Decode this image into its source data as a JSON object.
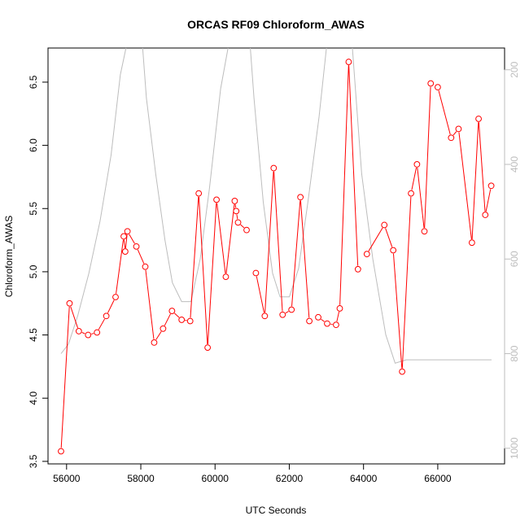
{
  "chart_data": {
    "type": "line",
    "title": "ORCAS RF09 Chloroform_AWAS",
    "xlabel": "UTC Seconds",
    "ylabel": "Chloroform_AWAS",
    "xlim": [
      55500,
      67800
    ],
    "ylim": [
      3.48,
      6.77
    ],
    "x_ticks": [
      56000,
      58000,
      60000,
      62000,
      64000,
      66000
    ],
    "y_ticks": [
      3.5,
      4.0,
      4.5,
      5.0,
      5.5,
      6.0,
      6.5
    ],
    "y2_ticks": [
      200,
      400,
      600,
      800,
      1000
    ],
    "y2_range_at_bottom": 1033,
    "y2_range_at_top": 154,
    "grid": false,
    "series": [
      {
        "color": "#ff0000",
        "marker": "open-circle",
        "axis": "left",
        "segments": [
          [
            [
              55850,
              3.58
            ],
            [
              56080,
              4.75
            ],
            [
              56330,
              4.53
            ],
            [
              56580,
              4.5
            ],
            [
              56820,
              4.52
            ],
            [
              57070,
              4.65
            ],
            [
              57320,
              4.8
            ],
            [
              57540,
              5.28
            ],
            [
              57580,
              5.16
            ],
            [
              57640,
              5.32
            ],
            [
              57880,
              5.2
            ],
            [
              58120,
              5.04
            ],
            [
              58360,
              4.44
            ],
            [
              58600,
              4.55
            ],
            [
              58840,
              4.69
            ],
            [
              59100,
              4.62
            ],
            [
              59330,
              4.61
            ],
            [
              59560,
              5.62
            ],
            [
              59800,
              4.4
            ],
            [
              60040,
              5.57
            ],
            [
              60290,
              4.96
            ],
            [
              60530,
              5.56
            ],
            [
              60570,
              5.48
            ],
            [
              60620,
              5.39
            ],
            [
              60850,
              5.33
            ]
          ],
          [
            [
              61100,
              4.99
            ],
            [
              61340,
              4.65
            ],
            [
              61580,
              5.82
            ],
            [
              61820,
              4.66
            ],
            [
              62060,
              4.7
            ],
            [
              62300,
              5.59
            ],
            [
              62540,
              4.61
            ]
          ],
          [
            [
              62780,
              4.64
            ],
            [
              63020,
              4.59
            ],
            [
              63260,
              4.58
            ],
            [
              63360,
              4.71
            ],
            [
              63600,
              6.66
            ],
            [
              63850,
              5.02
            ]
          ],
          [
            [
              64090,
              5.14
            ],
            [
              64560,
              5.37
            ],
            [
              64800,
              5.17
            ],
            [
              65040,
              4.21
            ],
            [
              65280,
              5.62
            ],
            [
              65440,
              5.85
            ],
            [
              65640,
              5.32
            ],
            [
              65810,
              6.49
            ]
          ],
          [
            [
              66000,
              6.46
            ],
            [
              66360,
              6.06
            ],
            [
              66560,
              6.13
            ],
            [
              66920,
              5.23
            ],
            [
              67100,
              6.21
            ],
            [
              67280,
              5.45
            ],
            [
              67440,
              5.68
            ]
          ]
        ]
      },
      {
        "color": "#bdbdbd",
        "axis": "right",
        "segments": [
          [
            [
              55850,
              800
            ],
            [
              56050,
              780
            ],
            [
              56300,
              720
            ],
            [
              56600,
              630
            ],
            [
              56900,
              520
            ],
            [
              57200,
              380
            ],
            [
              57450,
              210
            ],
            [
              57600,
              154
            ]
          ],
          [
            [
              58050,
              154
            ],
            [
              58150,
              260
            ],
            [
              58400,
              420
            ],
            [
              58650,
              560
            ],
            [
              58850,
              650
            ],
            [
              59100,
              690
            ],
            [
              59350,
              690
            ],
            [
              59600,
              600
            ],
            [
              59850,
              450
            ],
            [
              60150,
              240
            ],
            [
              60350,
              154
            ]
          ],
          [
            [
              60950,
              154
            ],
            [
              61050,
              260
            ],
            [
              61300,
              480
            ],
            [
              61550,
              630
            ],
            [
              61750,
              680
            ],
            [
              62000,
              680
            ],
            [
              62250,
              620
            ],
            [
              62500,
              480
            ],
            [
              62800,
              300
            ],
            [
              63000,
              154
            ]
          ],
          [
            [
              63700,
              154
            ],
            [
              63950,
              420
            ],
            [
              64250,
              600
            ],
            [
              64600,
              760
            ],
            [
              64850,
              820
            ],
            [
              65150,
              813
            ],
            [
              65500,
              813
            ],
            [
              66000,
              813
            ],
            [
              66500,
              813
            ],
            [
              67000,
              813
            ],
            [
              67450,
              813
            ]
          ]
        ]
      }
    ]
  }
}
